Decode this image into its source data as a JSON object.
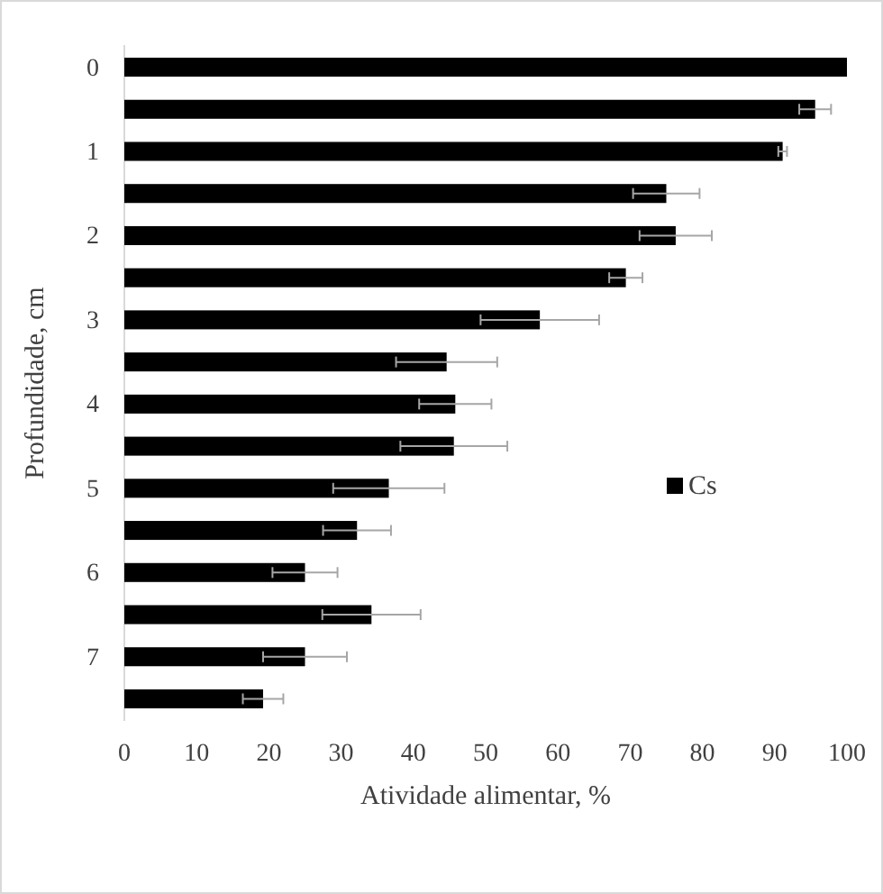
{
  "chart_data": {
    "type": "bar",
    "orientation": "horizontal",
    "xlabel": "Atividade alimentar, %",
    "ylabel": "Profundidade, cm",
    "categories": [
      "0",
      null,
      "1",
      null,
      "2",
      null,
      "3",
      null,
      "4",
      null,
      "5",
      null,
      "6",
      null,
      "7",
      null
    ],
    "series": [
      {
        "name": "Cs",
        "color": "#000000",
        "values": [
          100,
          95.6,
          91.1,
          75.0,
          76.3,
          69.4,
          57.5,
          44.6,
          45.8,
          45.6,
          36.6,
          32.2,
          25.0,
          34.2,
          25.0,
          19.2
        ],
        "errors": [
          null,
          2.2,
          0.6,
          4.6,
          5,
          2.3,
          8.2,
          7,
          5,
          7.4,
          7.7,
          4.7,
          4.5,
          6.8,
          5.8,
          2.8
        ]
      }
    ],
    "xlim": [
      0,
      100
    ],
    "xticks": [
      0,
      10,
      20,
      30,
      40,
      50,
      60,
      70,
      80,
      90,
      100
    ],
    "legend": "right",
    "grid": false
  }
}
